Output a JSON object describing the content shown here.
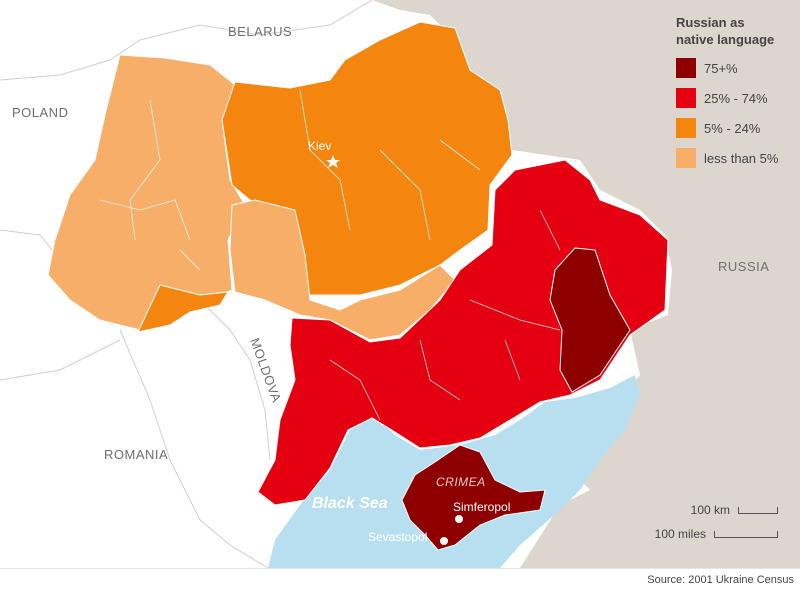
{
  "legend": {
    "title_line1": "Russian as",
    "title_line2": "native language",
    "items": [
      {
        "label": "75+%",
        "color": "#8e0000"
      },
      {
        "label": "25% - 74%",
        "color": "#e40010"
      },
      {
        "label": "5% - 24%",
        "color": "#f4850f"
      },
      {
        "label": "less than 5%",
        "color": "#f7ae69"
      }
    ]
  },
  "labels": {
    "belarus": "BELARUS",
    "poland": "POLAND",
    "russia": "RUSSIA",
    "moldova": "MOLDOVA",
    "romania": "ROMANIA",
    "black_sea": "Black Sea",
    "crimea": "CRIMEA",
    "kiev": "Kiev",
    "simferopol": "Simferopol",
    "sevastopol": "Sevastopol"
  },
  "scale": {
    "km": "100 km",
    "miles": "100 miles"
  },
  "source": "Source: 2001 Ukraine Census",
  "colors": {
    "land": "#ffffff",
    "russia_land": "#ddd6cf",
    "sea": "#b7dff0",
    "border": "#c9c9c9",
    "region_border": "#ffffff"
  }
}
